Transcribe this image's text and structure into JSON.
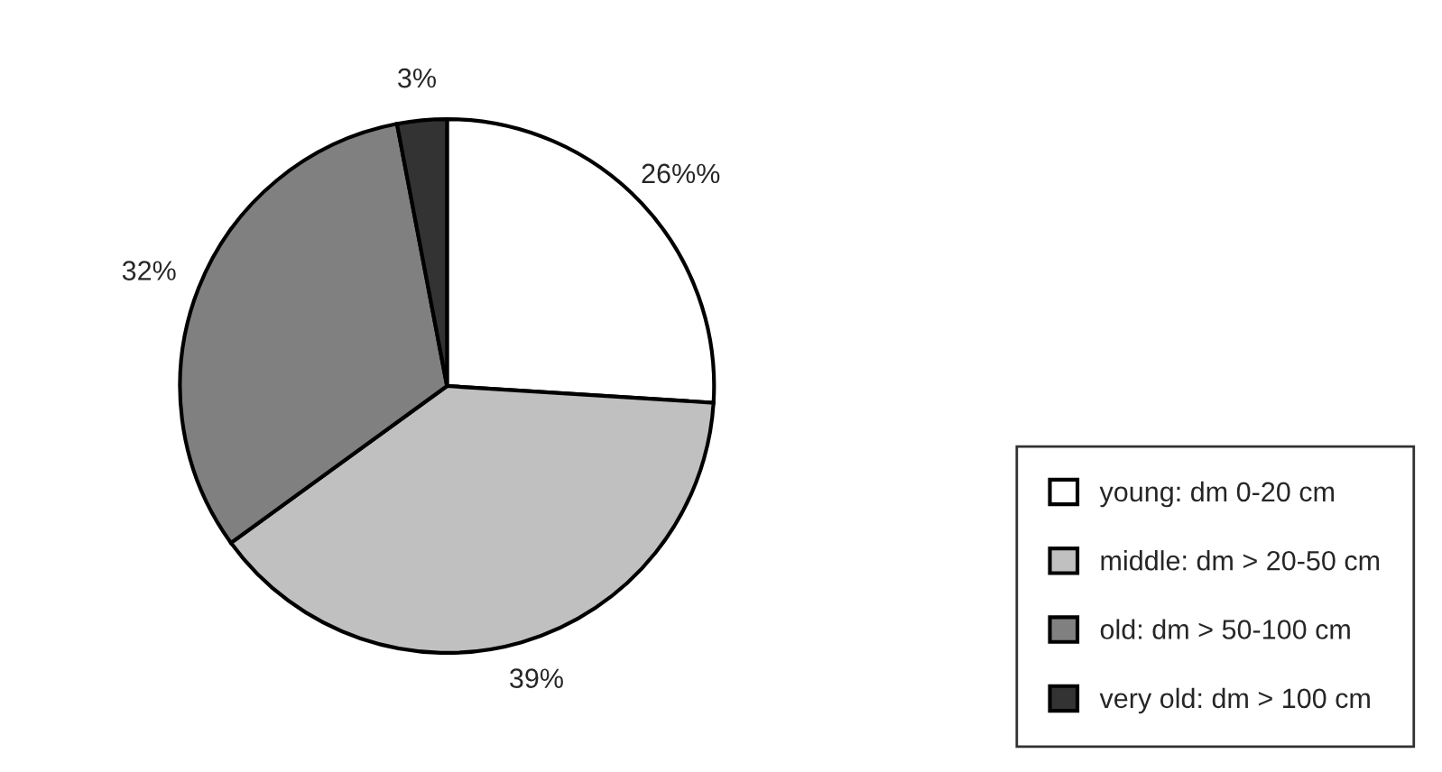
{
  "chart_data": {
    "type": "pie",
    "categories": [
      "young: dm 0-20 cm",
      "middle: dm > 20-50 cm",
      "old: dm > 50-100 cm",
      "very old: dm > 100 cm"
    ],
    "values": [
      26,
      39,
      32,
      3
    ],
    "colors": [
      "#ffffff",
      "#c0c0c0",
      "#808080",
      "#333333"
    ],
    "value_labels": [
      "26%%",
      "39%",
      "32%",
      "3%"
    ],
    "legend": "right"
  }
}
